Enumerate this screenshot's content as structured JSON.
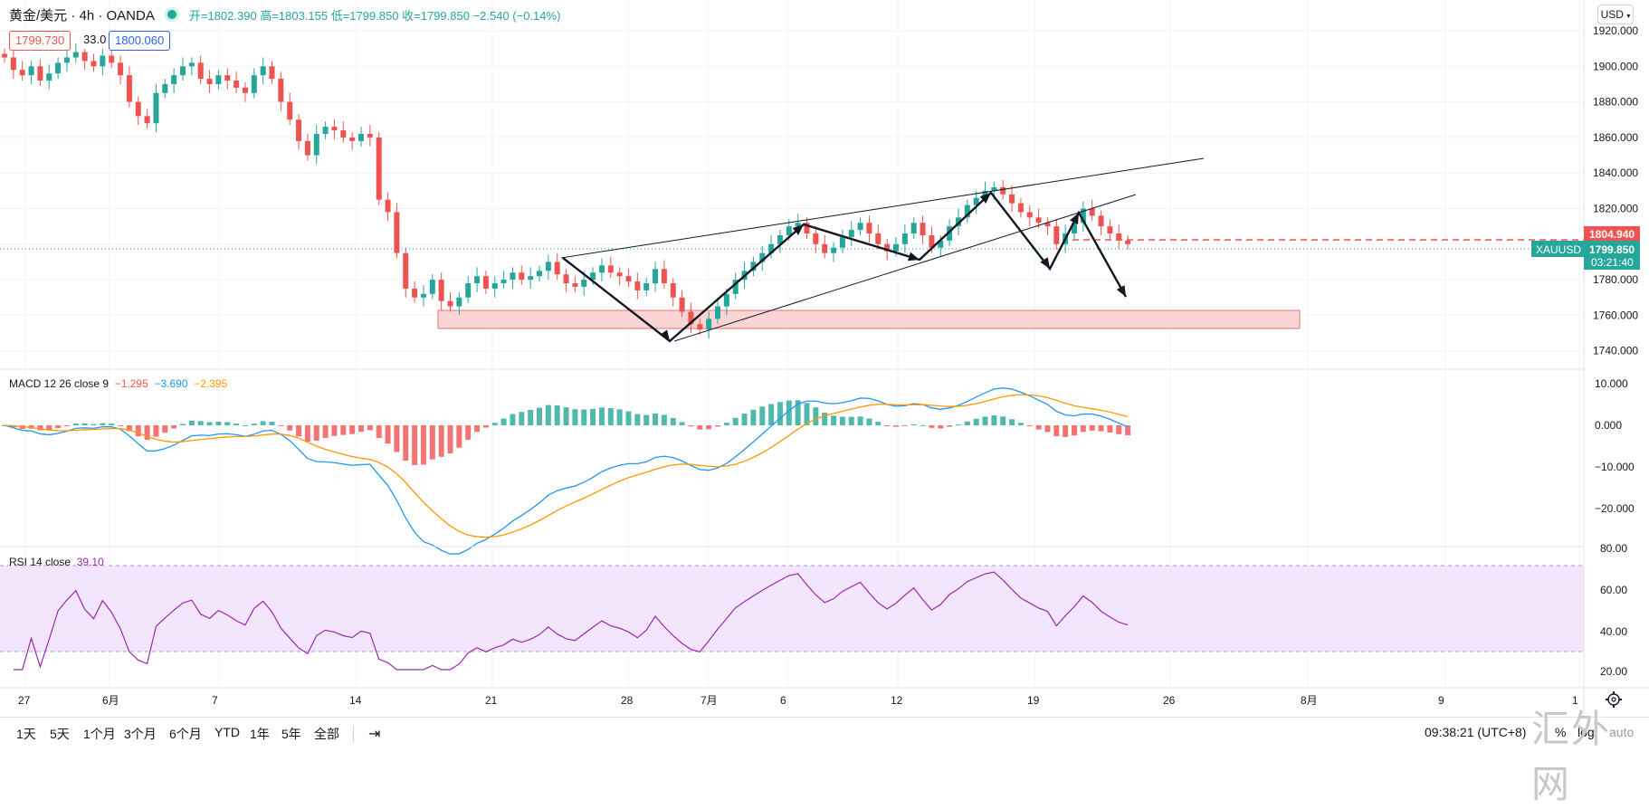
{
  "header": {
    "symbol": "黄金/美元 · 4h · OANDA",
    "ohlc_text": "开=1802.390 高=1803.155 低=1799.850 收=1799.850 −2.540 (−0.14%)",
    "sell_price": "1799.730",
    "spread": "33.0",
    "buy_price": "1800.060",
    "currency": "USD"
  },
  "price_axis": {
    "ticks": [
      "1920.000",
      "1900.000",
      "1880.000",
      "1860.000",
      "1840.000",
      "1820.000",
      "1800.000",
      "1780.000",
      "1760.000",
      "1740.000"
    ],
    "tag_red": "1804.940",
    "tag_symbol": "XAUUSD",
    "tag_last": "1799.850",
    "tag_countdown": "03:21:40"
  },
  "macd": {
    "label": "MACD 12 26 close 9",
    "v1": "−1.295",
    "v2": "−3.690",
    "v3": "−2.395",
    "ticks": [
      "10.000",
      "0.000",
      "−10.000",
      "−20.000"
    ]
  },
  "rsi": {
    "label": "RSI 14 close",
    "value": "39.10",
    "ticks": [
      "80.00",
      "60.00",
      "40.00",
      "20.00"
    ]
  },
  "time_axis": [
    "27",
    "6月",
    "7",
    "14",
    "21",
    "28",
    "7月",
    "6",
    "12",
    "19",
    "26",
    "8月",
    "9",
    "1"
  ],
  "toolbar": {
    "ranges": [
      "1天",
      "5天",
      "1个月",
      "3个月",
      "6个月",
      "YTD",
      "1年",
      "5年",
      "全部"
    ],
    "clock": "09:38:21 (UTC+8)",
    "percent": "%",
    "log": "log",
    "auto": "auto"
  },
  "watermark": {
    "main": "汇外网",
    "sub": "auto"
  },
  "colors": {
    "up": "#26a69a",
    "down": "#ef5350",
    "macd": "#2196f3",
    "signal": "#ff9800",
    "rsi": "#9c27b0",
    "rsi_band": "#f3e5fc",
    "support_zone": "#fbd5d5"
  },
  "chart_data": {
    "type": "candlestick",
    "price_range": [
      1735,
      1925
    ],
    "close_series": [
      1905,
      1898,
      1895,
      1900,
      1892,
      1896,
      1902,
      1905,
      1908,
      1903,
      1900,
      1906,
      1902,
      1895,
      1880,
      1872,
      1868,
      1885,
      1890,
      1895,
      1900,
      1902,
      1893,
      1890,
      1895,
      1892,
      1888,
      1885,
      1895,
      1900,
      1893,
      1880,
      1870,
      1858,
      1850,
      1862,
      1866,
      1864,
      1860,
      1858,
      1862,
      1860,
      1825,
      1818,
      1795,
      1775,
      1770,
      1772,
      1780,
      1768,
      1765,
      1770,
      1778,
      1782,
      1775,
      1778,
      1780,
      1784,
      1780,
      1782,
      1785,
      1790,
      1783,
      1778,
      1776,
      1780,
      1784,
      1788,
      1784,
      1782,
      1779,
      1774,
      1778,
      1786,
      1778,
      1770,
      1762,
      1755,
      1752,
      1758,
      1765,
      1772,
      1780,
      1785,
      1790,
      1795,
      1800,
      1805,
      1810,
      1812,
      1806,
      1800,
      1795,
      1798,
      1804,
      1808,
      1812,
      1806,
      1800,
      1796,
      1800,
      1806,
      1812,
      1805,
      1798,
      1802,
      1810,
      1815,
      1822,
      1826,
      1830,
      1832,
      1828,
      1823,
      1818,
      1815,
      1812,
      1810,
      1800,
      1806,
      1812,
      1820,
      1816,
      1810,
      1806,
      1802,
      1800
    ],
    "annotations": [
      "rising wedge with trendlines",
      "support zone 1755–1765",
      "arrows showing zigzag path and projected drop"
    ],
    "macd_range": [
      -27,
      13
    ],
    "rsi_range": [
      15,
      80
    ]
  }
}
